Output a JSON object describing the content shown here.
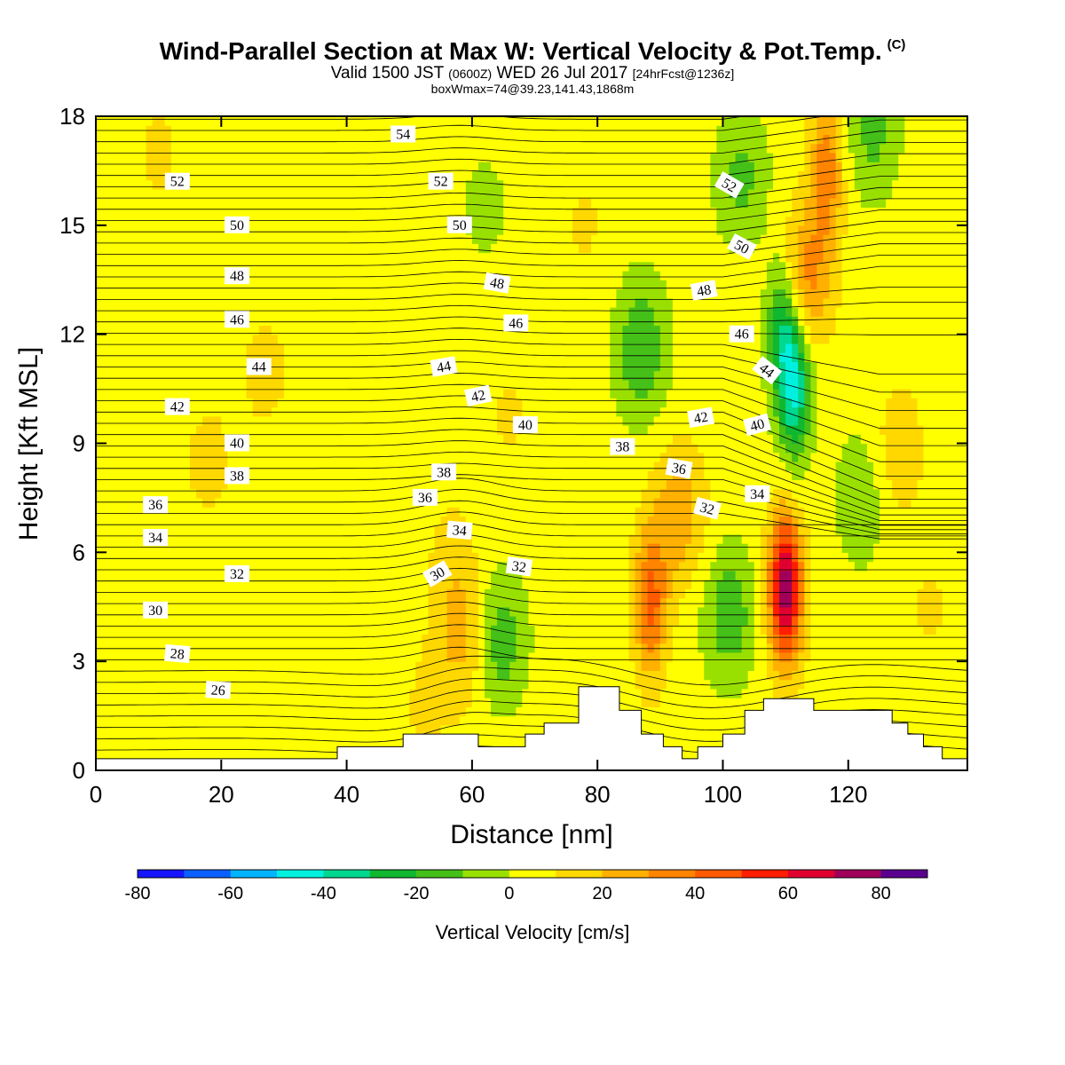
{
  "header": {
    "title": "Wind-Parallel Section at Max W: Vertical Velocity & Pot.Temp.",
    "copyright": "(C)",
    "valid_pre": "Valid 1500 JST",
    "valid_utc": "(0600Z)",
    "valid_post": "WED 26 Jul 2017",
    "forecast": "[24hrFcst@1236z]",
    "box_info": "boxWmax=74@39.23,141.43,1868m"
  },
  "chart_data": {
    "type": "heatmap",
    "xlabel": "Distance [nm]",
    "ylabel": "Height [Kft MSL]",
    "xlim": [
      0,
      139
    ],
    "ylim": [
      0,
      18
    ],
    "x_ticks": [
      "0",
      "20",
      "40",
      "60",
      "80",
      "100",
      "120"
    ],
    "y_ticks": [
      "0",
      "3",
      "6",
      "9",
      "12",
      "15",
      "18"
    ],
    "colorbar": {
      "title": "Vertical Velocity [cm/s]",
      "labels": [
        "-80",
        "-60",
        "-40",
        "-20",
        "0",
        "20",
        "40",
        "60",
        "80"
      ],
      "levels": [
        -80,
        -70,
        -60,
        -50,
        -40,
        -30,
        -20,
        -10,
        0,
        10,
        20,
        30,
        40,
        50,
        60,
        70,
        80,
        90
      ],
      "colors": [
        "#1515ff",
        "#0a60ff",
        "#00b4ff",
        "#00f0e0",
        "#00d890",
        "#10b830",
        "#44c018",
        "#99e000",
        "#ffff00",
        "#ffd800",
        "#ffb000",
        "#ff8400",
        "#ff5a00",
        "#ff1e00",
        "#e00030",
        "#a0005a",
        "#5a0090"
      ]
    },
    "terrain_nm_kft": [
      [
        0,
        0.32
      ],
      [
        4,
        0.32
      ],
      [
        38.5,
        0.32
      ],
      [
        38.5,
        0.65
      ],
      [
        49,
        0.65
      ],
      [
        49,
        1.0
      ],
      [
        61,
        1.0
      ],
      [
        61,
        0.65
      ],
      [
        68.5,
        0.65
      ],
      [
        68.5,
        1.0
      ],
      [
        71.5,
        1.0
      ],
      [
        71.5,
        1.3
      ],
      [
        77,
        1.3
      ],
      [
        77,
        2.3
      ],
      [
        83.5,
        2.3
      ],
      [
        83.5,
        1.65
      ],
      [
        87,
        1.65
      ],
      [
        87,
        1.0
      ],
      [
        90.5,
        1.0
      ],
      [
        90.5,
        0.65
      ],
      [
        93.5,
        0.65
      ],
      [
        93.5,
        0.32
      ],
      [
        96,
        0.32
      ],
      [
        96,
        0.65
      ],
      [
        100,
        0.65
      ],
      [
        100,
        1.0
      ],
      [
        103.5,
        1.0
      ],
      [
        103.5,
        1.65
      ],
      [
        106.5,
        1.65
      ],
      [
        106.5,
        1.97
      ],
      [
        114.5,
        1.97
      ],
      [
        114.5,
        1.65
      ],
      [
        127,
        1.65
      ],
      [
        127,
        1.3
      ],
      [
        129.5,
        1.3
      ],
      [
        129.5,
        1.0
      ],
      [
        132,
        1.0
      ],
      [
        132,
        0.65
      ],
      [
        135,
        0.65
      ],
      [
        135,
        0.32
      ],
      [
        139,
        0.32
      ]
    ],
    "w_features_cm_s": [
      {
        "x": 110,
        "z": 5,
        "w": 74
      },
      {
        "x": 88.5,
        "z": 4.6,
        "w": 38
      },
      {
        "x": 93,
        "z": 7,
        "w": 22
      },
      {
        "x": 113,
        "z": 13.5,
        "w": 30
      },
      {
        "x": 116.5,
        "z": 16.5,
        "w": 32
      },
      {
        "x": 58.5,
        "z": 3.6,
        "w": 18
      },
      {
        "x": 57,
        "z": 5.8,
        "w": 8
      },
      {
        "x": 18,
        "z": 8.5,
        "w": 8
      },
      {
        "x": 27,
        "z": 11,
        "w": 8
      },
      {
        "x": 10,
        "z": 17,
        "w": 7
      },
      {
        "x": 66,
        "z": 9.8,
        "w": 6
      },
      {
        "x": 78,
        "z": 15,
        "w": 6
      },
      {
        "x": 52,
        "z": 1.7,
        "w": 6
      },
      {
        "x": 35,
        "z": 2.2,
        "w": 5
      },
      {
        "x": 128,
        "z": 8.8,
        "w": 12
      },
      {
        "x": 133,
        "z": 4.5,
        "w": 6
      },
      {
        "x": 111.5,
        "z": 10.5,
        "w": -42
      },
      {
        "x": 109.5,
        "z": 12.2,
        "w": -36
      },
      {
        "x": 103,
        "z": 16.3,
        "w": -18
      },
      {
        "x": 87,
        "z": 11.6,
        "w": -25
      },
      {
        "x": 64.5,
        "z": 3.6,
        "w": -22
      },
      {
        "x": 101,
        "z": 4.3,
        "w": -22
      },
      {
        "x": 122,
        "z": 7.5,
        "w": -14
      },
      {
        "x": 124,
        "z": 17.6,
        "w": -18
      },
      {
        "x": 62,
        "z": 15.5,
        "w": -8
      }
    ],
    "theta_labels": [
      {
        "x": 49,
        "z": 17.5,
        "text": "54"
      },
      {
        "x": 13,
        "z": 16.2,
        "text": "52"
      },
      {
        "x": 55,
        "z": 16.2,
        "text": "52"
      },
      {
        "x": 101,
        "z": 16.1,
        "text": "52",
        "rot": 30
      },
      {
        "x": 22.5,
        "z": 15.0,
        "text": "50"
      },
      {
        "x": 58,
        "z": 15.0,
        "text": "50"
      },
      {
        "x": 103,
        "z": 14.4,
        "text": "50",
        "rot": 28
      },
      {
        "x": 22.5,
        "z": 13.6,
        "text": "48"
      },
      {
        "x": 64,
        "z": 13.4,
        "text": "48",
        "rot": 10
      },
      {
        "x": 97,
        "z": 13.2,
        "text": "48",
        "rot": -10
      },
      {
        "x": 22.5,
        "z": 12.4,
        "text": "46"
      },
      {
        "x": 67,
        "z": 12.3,
        "text": "46"
      },
      {
        "x": 103,
        "z": 12.0,
        "text": "46"
      },
      {
        "x": 26,
        "z": 11.1,
        "text": "44"
      },
      {
        "x": 55.5,
        "z": 11.1,
        "text": "44",
        "rot": -10
      },
      {
        "x": 107,
        "z": 11.0,
        "text": "44",
        "rot": 38
      },
      {
        "x": 13,
        "z": 10.0,
        "text": "42"
      },
      {
        "x": 61,
        "z": 10.3,
        "text": "42",
        "rot": -12
      },
      {
        "x": 96.5,
        "z": 9.7,
        "text": "42",
        "rot": -10
      },
      {
        "x": 22.5,
        "z": 9.0,
        "text": "40"
      },
      {
        "x": 68.5,
        "z": 9.5,
        "text": "40"
      },
      {
        "x": 105.5,
        "z": 9.5,
        "text": "40",
        "rot": -15
      },
      {
        "x": 22.5,
        "z": 8.1,
        "text": "38"
      },
      {
        "x": 55.5,
        "z": 8.2,
        "text": "38"
      },
      {
        "x": 84,
        "z": 8.9,
        "text": "38"
      },
      {
        "x": 9.5,
        "z": 7.3,
        "text": "36"
      },
      {
        "x": 52.5,
        "z": 7.5,
        "text": "36"
      },
      {
        "x": 93,
        "z": 8.3,
        "text": "36",
        "rot": 10
      },
      {
        "x": 9.5,
        "z": 6.4,
        "text": "34"
      },
      {
        "x": 58,
        "z": 6.6,
        "text": "34",
        "rot": 5
      },
      {
        "x": 105.5,
        "z": 7.6,
        "text": "34"
      },
      {
        "x": 22.5,
        "z": 5.4,
        "text": "32"
      },
      {
        "x": 67.5,
        "z": 5.6,
        "text": "32",
        "rot": 8
      },
      {
        "x": 97.5,
        "z": 7.2,
        "text": "32",
        "rot": 15
      },
      {
        "x": 54.5,
        "z": 5.4,
        "text": "30",
        "rot": -30
      },
      {
        "x": 9.5,
        "z": 4.4,
        "text": "30"
      },
      {
        "x": 13,
        "z": 3.2,
        "text": "28",
        "rot": 5
      },
      {
        "x": 19.5,
        "z": 2.2,
        "text": "26",
        "rot": 3
      }
    ]
  }
}
